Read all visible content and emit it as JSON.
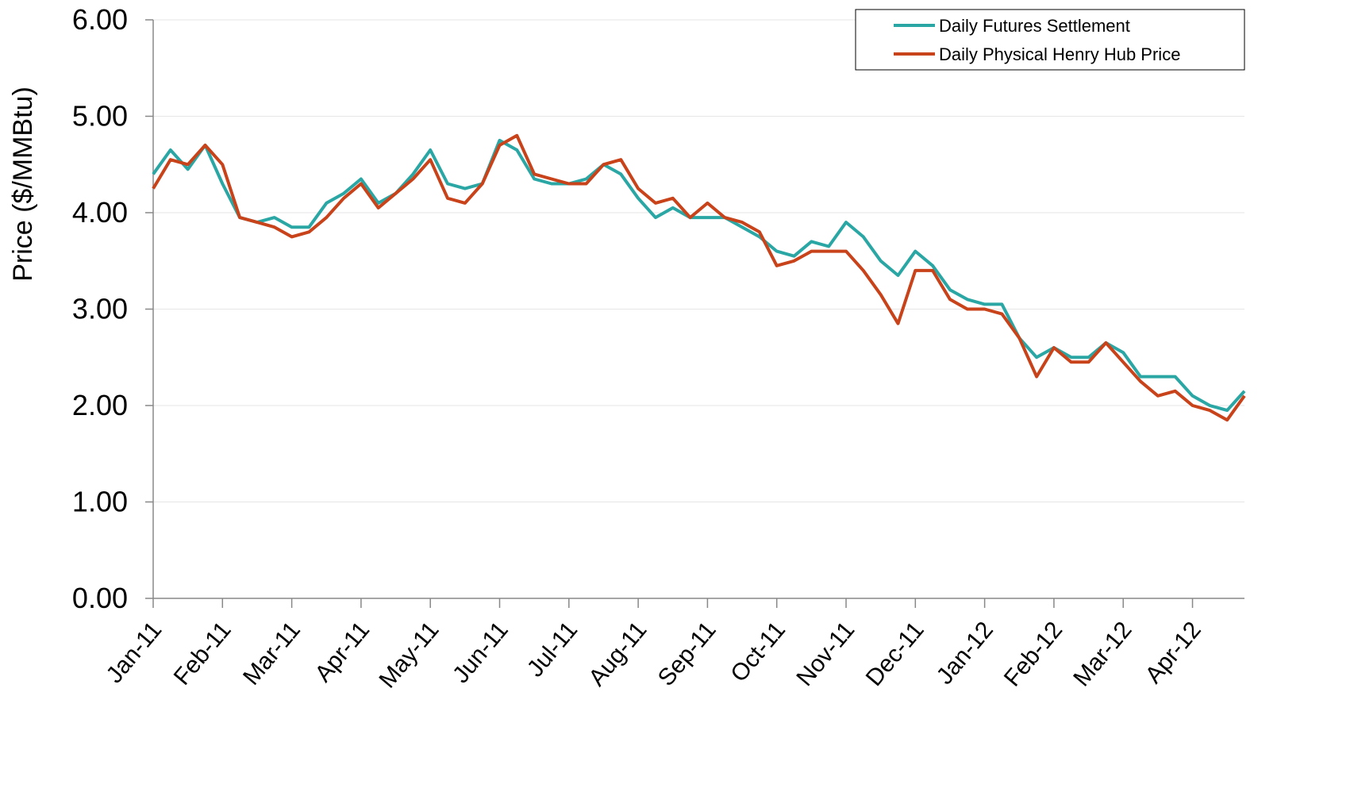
{
  "chart_data": {
    "type": "line",
    "y_label": "Price ($/MMBtu)",
    "categories": [
      "Jan-11",
      null,
      null,
      null,
      "Feb-11",
      null,
      null,
      null,
      "Mar-11",
      null,
      null,
      null,
      "Apr-11",
      null,
      null,
      null,
      "May-11",
      null,
      null,
      null,
      "Jun-11",
      null,
      null,
      null,
      "Jul-11",
      null,
      null,
      null,
      "Aug-11",
      null,
      null,
      null,
      "Sep-11",
      null,
      null,
      null,
      "Oct-11",
      null,
      null,
      null,
      "Nov-11",
      null,
      null,
      null,
      "Dec-11",
      null,
      null,
      null,
      "Jan-12",
      null,
      null,
      null,
      "Feb-12",
      null,
      null,
      null,
      "Mar-12",
      null,
      null,
      null,
      "Apr-12",
      null,
      null,
      null
    ],
    "series": [
      {
        "name": "Daily Futures Settlement",
        "color": "#2aa7a4",
        "values": [
          4.4,
          4.65,
          4.45,
          4.7,
          4.3,
          3.95,
          3.9,
          3.95,
          3.85,
          3.85,
          4.1,
          4.2,
          4.35,
          4.1,
          4.2,
          4.4,
          4.65,
          4.3,
          4.25,
          4.3,
          4.75,
          4.65,
          4.35,
          4.3,
          4.3,
          4.35,
          4.5,
          4.4,
          4.15,
          3.95,
          4.05,
          3.95,
          3.95,
          3.95,
          3.85,
          3.75,
          3.6,
          3.55,
          3.7,
          3.65,
          3.9,
          3.75,
          3.5,
          3.35,
          3.6,
          3.45,
          3.2,
          3.1,
          3.05,
          3.05,
          2.7,
          2.5,
          2.6,
          2.5,
          2.5,
          2.65,
          2.55,
          2.3,
          2.3,
          2.3,
          2.1,
          2.0,
          1.95,
          2.15
        ]
      },
      {
        "name": "Daily Physical Henry Hub Price",
        "color": "#c8421a",
        "values": [
          4.25,
          4.55,
          4.5,
          4.7,
          4.5,
          3.95,
          3.9,
          3.85,
          3.75,
          3.8,
          3.95,
          4.15,
          4.3,
          4.05,
          4.2,
          4.35,
          4.55,
          4.15,
          4.1,
          4.3,
          4.7,
          4.8,
          4.4,
          4.35,
          4.3,
          4.3,
          4.5,
          4.55,
          4.25,
          4.1,
          4.15,
          3.95,
          4.1,
          3.95,
          3.9,
          3.8,
          3.45,
          3.5,
          3.6,
          3.6,
          3.6,
          3.4,
          3.15,
          2.85,
          3.4,
          3.4,
          3.1,
          3.0,
          3.0,
          2.95,
          2.7,
          2.3,
          2.6,
          2.45,
          2.45,
          2.65,
          2.45,
          2.25,
          2.1,
          2.15,
          2.0,
          1.95,
          1.85,
          2.1
        ]
      }
    ],
    "ylim": [
      0,
      6
    ],
    "yticks": [
      {
        "value": 0,
        "label": "0.00"
      },
      {
        "value": 1,
        "label": "1.00"
      },
      {
        "value": 2,
        "label": "2.00"
      },
      {
        "value": 3,
        "label": "3.00"
      },
      {
        "value": 4,
        "label": "4.00"
      },
      {
        "value": 5,
        "label": "5.00"
      },
      {
        "value": 6,
        "label": "6.00"
      }
    ],
    "grid": true,
    "legend": "top-right"
  }
}
